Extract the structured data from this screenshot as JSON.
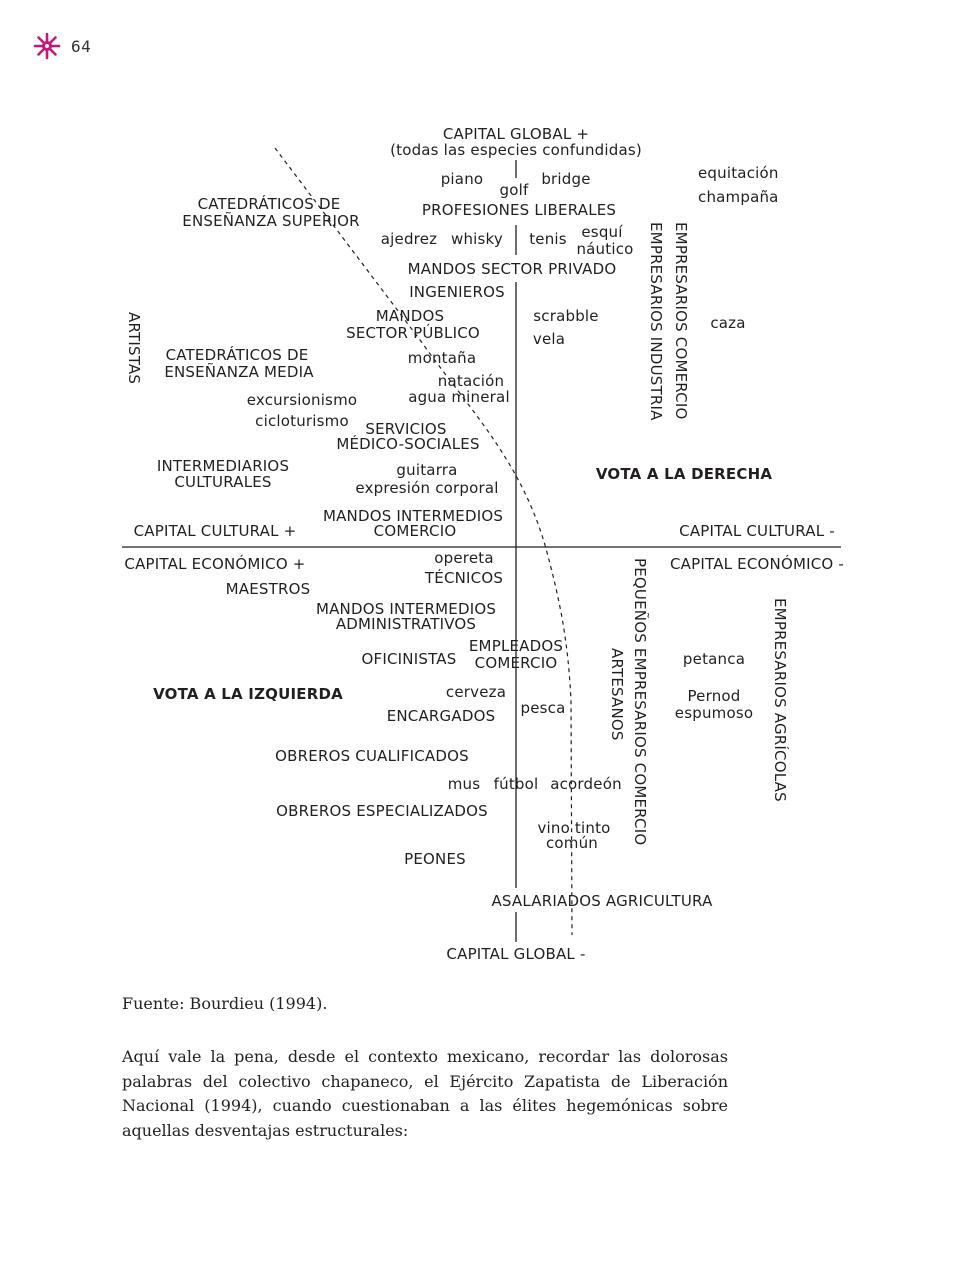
{
  "header": {
    "page_number": "64",
    "accent_color": "#c2187a"
  },
  "diagram": {
    "top_labels": {
      "capital_global_plus": "CAPITAL GLOBAL +",
      "all_species": "(todas las especies confundidas)",
      "piano": "piano",
      "golf": "golf",
      "bridge": "bridge",
      "equitacion": "equitación",
      "champana": "champaña",
      "catedraticos_superior_1": "CATEDRÁTICOS DE",
      "catedraticos_superior_2": "ENSEÑANZA SUPERIOR",
      "profesiones_liberales": "PROFESIONES LIBERALES",
      "ajedrez": "ajedrez",
      "whisky": "whisky",
      "tenis": "tenis",
      "esqui": "esquí",
      "nautico": "náutico",
      "mandos_privado": "MANDOS SECTOR PRIVADO",
      "ingenieros": "INGENIEROS",
      "mandos_publico_1": "MANDOS",
      "mandos_publico_2": "SECTOR PÚBLICO",
      "scrabble": "scrabble",
      "vela": "vela",
      "caza": "caza",
      "catedraticos_media_1": "CATEDRÁTICOS DE",
      "catedraticos_media_2": "ENSEÑANZA MEDIA",
      "montana": "montaña",
      "natacion": "natación",
      "agua_mineral": "agua mineral",
      "excursionismo": "excursionismo",
      "cicloturismo": "cicloturismo",
      "servicios_1": "SERVICIOS",
      "servicios_2": "MÉDICO-SOCIALES",
      "intermediarios_1": "INTERMEDIARIOS",
      "intermediarios_2": "CULTURALES",
      "guitarra": "guitarra",
      "expresion": "expresión corporal",
      "vota_derecha": "VOTA A LA DERECHA",
      "mandos_intermedios_com_1": "MANDOS INTERMEDIOS",
      "mandos_intermedios_com_2": "COMERCIO",
      "capital_cultural_plus": "CAPITAL CULTURAL +",
      "capital_cultural_minus": "CAPITAL CULTURAL -"
    },
    "bottom_labels": {
      "capital_economico_plus": "CAPITAL ECONÓMICO +",
      "capital_economico_minus": "CAPITAL ECONÓMICO -",
      "opereta": "opereta",
      "tecnicos": "TÉCNICOS",
      "maestros": "MAESTROS",
      "mandos_admin_1": "MANDOS INTERMEDIOS",
      "mandos_admin_2": "ADMINISTRATIVOS",
      "empleados_1": "EMPLEADOS",
      "empleados_2": "COMERCIO",
      "oficinistas": "OFICINISTAS",
      "petanca": "petanca",
      "vota_izquierda": "VOTA A LA IZQUIERDA",
      "cerveza": "cerveza",
      "pernod": "Pernod",
      "espumoso": "espumoso",
      "encargados": "ENCARGADOS",
      "pesca": "pesca",
      "obreros_cualificados": "OBREROS CUALIFICADOS",
      "mus": "mus",
      "futbol": "fútbol",
      "acordeon": "acordeón",
      "obreros_especializados": "OBREROS ESPECIALIZADOS",
      "vino_1": "vino tinto",
      "vino_2": "común",
      "peones": "PEONES",
      "asalariados": "ASALARIADOS AGRICULTURA",
      "capital_global_minus": "CAPITAL GLOBAL -"
    },
    "vertical_labels": {
      "artistas": "ARTISTAS",
      "empresarios_industria": "EMPRESARIOS INDUSTRIA",
      "empresarios_comercio": "EMPRESARIOS COMERCIO",
      "artesanos": "ARTESANOS",
      "pequenos_empresarios": "PEQUEÑOS EMPRESARIOS COMERCIO",
      "empresarios_agricolas": "EMPRESARIOS AGRÍCOLAS"
    }
  },
  "source": "Fuente: Bourdieu (1994).",
  "paragraph": "Aquí vale la pena, desde el contexto mexicano, recordar las dolorosas palabras del colectivo chapaneco, el Ejército Zapatista de Liberación Nacional (1994), cuando cuestionaban a las élites hegemónicas sobre aquellas desventajas estructurales:"
}
